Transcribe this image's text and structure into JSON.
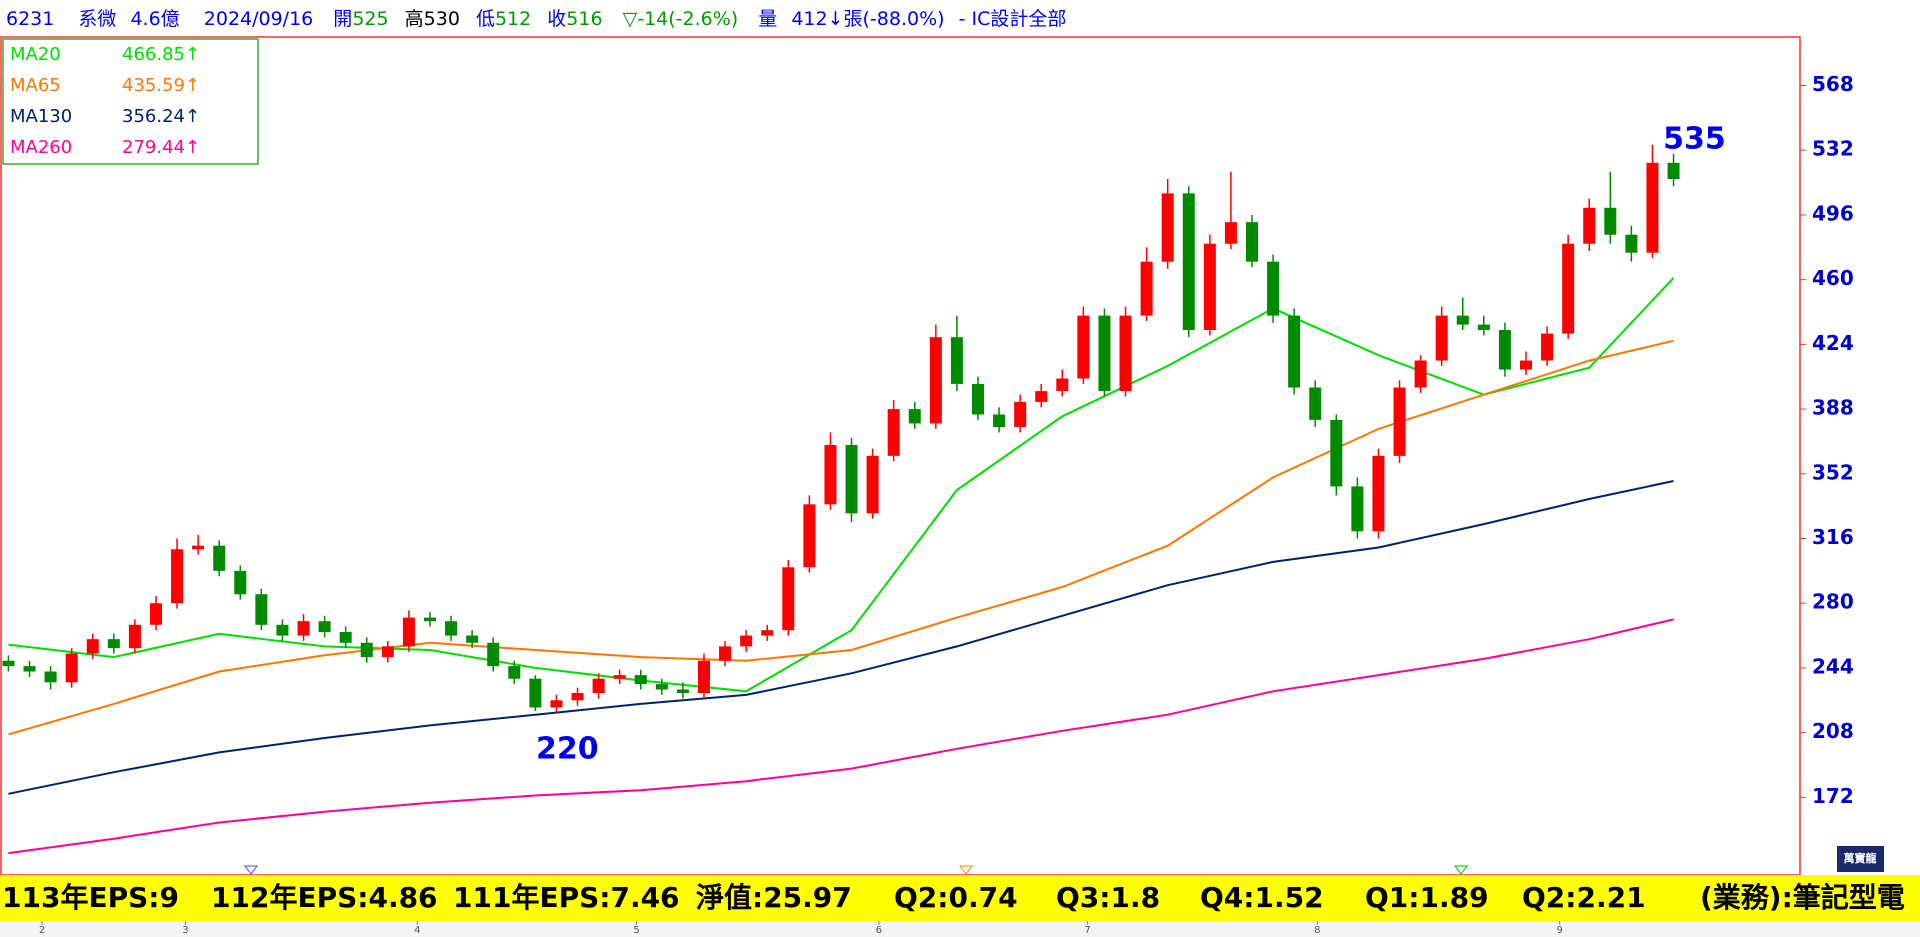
{
  "header": {
    "code": "6231",
    "name": "系微",
    "cap": "4.6億",
    "date": "2024/09/16",
    "open_label": "開",
    "open": 525,
    "high_label": "高",
    "high": 530,
    "low_label": "低",
    "low": 512,
    "close_label": "收",
    "close": 516,
    "change": "▽-14(-2.6%)",
    "vol_label": "量",
    "volume": "412↓張(-88.0%)",
    "sector": "- IC設計全部"
  },
  "footer": {
    "items": [
      "113年EPS:9",
      "112年EPS:4.86",
      "111年EPS:7.46",
      "淨值:25.97",
      "Q2:0.74",
      "Q3:1.8",
      "Q4:1.52",
      "Q1:1.89",
      "Q2:2.21",
      "(業務):筆記型電"
    ]
  },
  "logo": "萬寶龍",
  "chart_data": {
    "type": "candlestick",
    "xlim": [
      -0.4,
      85
    ],
    "ylim": [
      128.8,
      595
    ],
    "yticks": [
      172,
      208,
      244,
      280,
      316,
      352,
      388,
      424,
      460,
      496,
      532,
      568
    ],
    "xticks": [
      {
        "value": 1.6,
        "label": "2"
      },
      {
        "value": 8.4,
        "label": "3"
      },
      {
        "value": 19.4,
        "label": "4"
      },
      {
        "value": 29.8,
        "label": "5"
      },
      {
        "value": 41.3,
        "label": "6"
      },
      {
        "value": 51.2,
        "label": "7"
      },
      {
        "value": 62.1,
        "label": "8"
      },
      {
        "value": 73.6,
        "label": "9"
      }
    ],
    "candles": {
      "up_color": "#ff0000",
      "down_color": "#008a00",
      "open": [
        248,
        245,
        242,
        236,
        252,
        260,
        255,
        268,
        280,
        310,
        312,
        298,
        285,
        268,
        262,
        270,
        264,
        258,
        250,
        256,
        272,
        270,
        262,
        258,
        245,
        238,
        222,
        226,
        230,
        238,
        240,
        235,
        232,
        230,
        248,
        256,
        262,
        265,
        300,
        335,
        368,
        330,
        362,
        388,
        380,
        428,
        402,
        385,
        378,
        392,
        398,
        405,
        440,
        398,
        440,
        470,
        508,
        432,
        480,
        492,
        470,
        440,
        400,
        382,
        345,
        320,
        362,
        400,
        415,
        440,
        435,
        432,
        410,
        415,
        430,
        480,
        500,
        485,
        475,
        525
      ],
      "high": [
        251,
        248,
        245,
        255,
        263,
        263,
        271,
        284,
        316,
        318,
        315,
        301,
        288,
        271,
        274,
        273,
        267,
        261,
        259,
        276,
        275,
        273,
        265,
        261,
        248,
        240,
        229,
        233,
        241,
        243,
        243,
        238,
        236,
        252,
        259,
        265,
        268,
        304,
        340,
        375,
        372,
        366,
        393,
        392,
        435,
        440,
        406,
        389,
        396,
        402,
        410,
        445,
        444,
        445,
        478,
        516,
        512,
        485,
        520,
        496,
        474,
        444,
        404,
        385,
        350,
        366,
        404,
        418,
        445,
        450,
        440,
        436,
        420,
        434,
        485,
        505,
        520,
        490,
        535,
        530
      ],
      "low": [
        242,
        239,
        232,
        233,
        249,
        252,
        252,
        265,
        277,
        307,
        295,
        282,
        265,
        259,
        259,
        261,
        255,
        247,
        247,
        253,
        267,
        259,
        255,
        242,
        235,
        220,
        219,
        223,
        227,
        235,
        232,
        229,
        227,
        227,
        245,
        253,
        259,
        262,
        297,
        332,
        325,
        327,
        359,
        377,
        377,
        398,
        382,
        375,
        375,
        389,
        395,
        402,
        395,
        395,
        437,
        466,
        428,
        429,
        477,
        467,
        436,
        396,
        378,
        340,
        316,
        316,
        358,
        397,
        412,
        432,
        429,
        406,
        407,
        412,
        427,
        476,
        480,
        470,
        472,
        512
      ],
      "close": [
        245,
        242,
        236,
        252,
        260,
        255,
        268,
        280,
        310,
        312,
        298,
        285,
        268,
        262,
        270,
        264,
        258,
        250,
        256,
        272,
        270,
        262,
        258,
        245,
        238,
        222,
        226,
        230,
        238,
        240,
        235,
        232,
        230,
        248,
        256,
        262,
        265,
        300,
        335,
        368,
        330,
        362,
        388,
        380,
        428,
        402,
        385,
        378,
        392,
        398,
        405,
        440,
        398,
        440,
        470,
        508,
        432,
        480,
        492,
        470,
        440,
        400,
        382,
        345,
        320,
        362,
        400,
        415,
        440,
        435,
        432,
        410,
        415,
        430,
        480,
        500,
        485,
        475,
        525,
        516
      ]
    },
    "ma": {
      "x": [
        0,
        5,
        10,
        15,
        20,
        25,
        30,
        35,
        40,
        45,
        50,
        55,
        60,
        65,
        70,
        75,
        79
      ],
      "series": [
        {
          "name": "MA20",
          "color": "#00dd00",
          "value_label": "466.85↑",
          "values": [
            257,
            250,
            263,
            256,
            254,
            244,
            237,
            231,
            265,
            343,
            384,
            412,
            444,
            418,
            396,
            411,
            461
          ]
        },
        {
          "name": "MA65",
          "color": "#ff7700",
          "value_label": "435.59↑",
          "values": [
            207,
            224,
            242,
            251,
            258,
            254,
            250,
            248,
            254,
            272,
            289,
            312,
            350,
            377,
            396,
            415,
            426
          ]
        },
        {
          "name": "MA130",
          "color": "#002266",
          "value_label": "356.24↑",
          "values": [
            174,
            186,
            197,
            205,
            212,
            218,
            224,
            229,
            241,
            256,
            273,
            290,
            303,
            311,
            324,
            338,
            348
          ]
        },
        {
          "name": "MA260",
          "color": "#ff0099",
          "value_label": "279.44↑",
          "values": [
            141,
            149,
            158,
            164,
            169,
            173,
            176,
            181,
            188,
            199,
            209,
            218,
            231,
            240,
            249,
            260,
            271
          ]
        }
      ]
    }
  }
}
